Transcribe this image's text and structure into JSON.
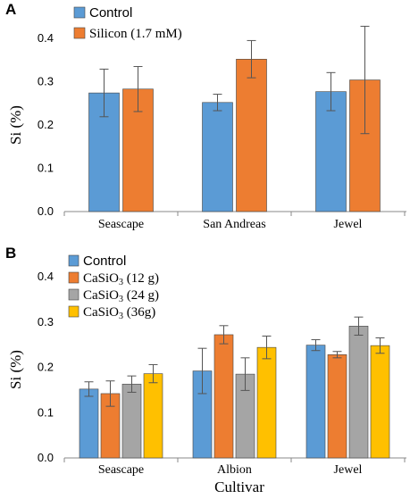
{
  "figure": {
    "xlabel": "Cultivar"
  },
  "chart_data": [
    {
      "type": "bar",
      "panel": "A",
      "ylabel": "Si (%)",
      "ylim": [
        0,
        0.5
      ],
      "yticks": [
        "0.0",
        "0.1",
        "0.2",
        "0.3",
        "0.4"
      ],
      "categories": [
        "Seascape",
        "San Andreas",
        "Jewel"
      ],
      "legend_position": "top-left",
      "series": [
        {
          "name": "Control",
          "color": "#5b9bd5",
          "values": [
            0.274,
            0.252,
            0.277
          ],
          "errors": [
            0.055,
            0.019,
            0.044
          ]
        },
        {
          "name": "Silicon (1.7 mM)",
          "color": "#ed7d31",
          "values": [
            0.283,
            0.352,
            0.304
          ],
          "errors": [
            0.052,
            0.043,
            0.124
          ]
        }
      ]
    },
    {
      "type": "bar",
      "panel": "B",
      "ylabel": "Si (%)",
      "ylim": [
        0,
        0.5
      ],
      "yticks": [
        "0.0",
        "0.1",
        "0.2",
        "0.3",
        "0.4"
      ],
      "categories": [
        "Seascape",
        "Albion",
        "Jewel"
      ],
      "legend_position": "top-left",
      "series": [
        {
          "name": "Control",
          "legend_parts": [
            "Control"
          ],
          "color": "#5b9bd5",
          "values": [
            0.152,
            0.192,
            0.249
          ],
          "errors": [
            0.016,
            0.05,
            0.012
          ]
        },
        {
          "name": "CaSiO3 (12 g)",
          "legend_parts": [
            "CaSiO",
            "3",
            " (12 g)"
          ],
          "color": "#ed7d31",
          "values": [
            0.142,
            0.272,
            0.228
          ],
          "errors": [
            0.028,
            0.02,
            0.007
          ]
        },
        {
          "name": "CaSiO3 (24 g)",
          "legend_parts": [
            "CaSiO",
            "3",
            " (24 g)"
          ],
          "color": "#a5a5a5",
          "values": [
            0.163,
            0.185,
            0.291
          ],
          "errors": [
            0.018,
            0.036,
            0.02
          ]
        },
        {
          "name": "CaSiO3 (36g)",
          "legend_parts": [
            "CaSiO",
            "3",
            " (36g)"
          ],
          "color": "#ffc000",
          "values": [
            0.186,
            0.244,
            0.248
          ],
          "errors": [
            0.02,
            0.025,
            0.017
          ]
        }
      ]
    }
  ]
}
